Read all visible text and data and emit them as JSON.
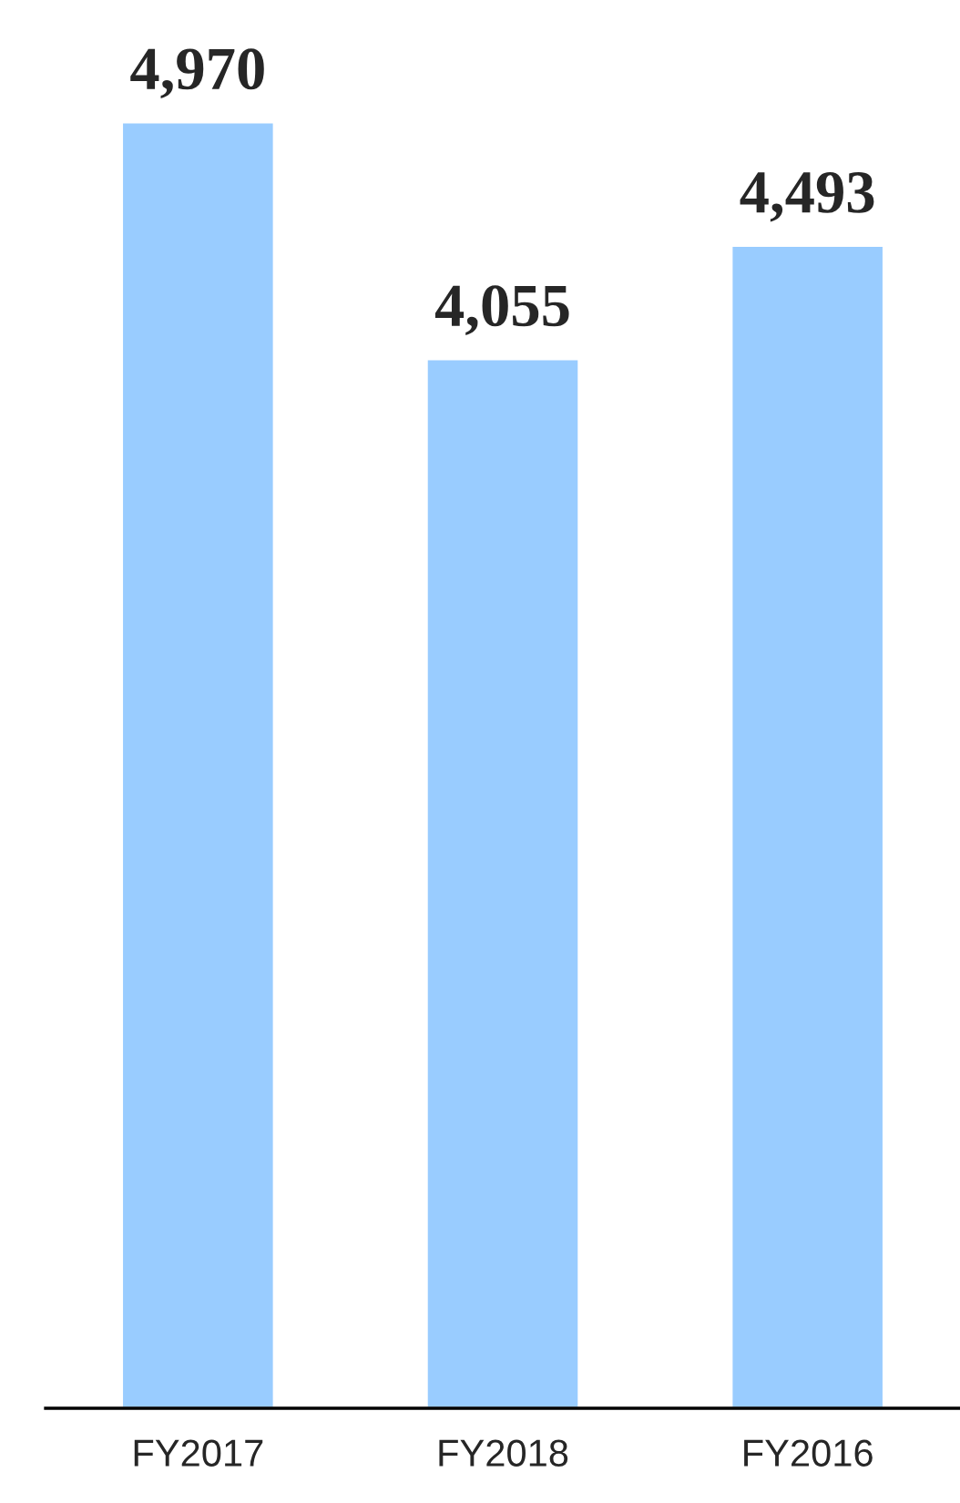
{
  "chart_data": {
    "type": "bar",
    "categories": [
      "FY2017",
      "FY2018",
      "FY2016"
    ],
    "values": [
      4970,
      4055,
      4493
    ],
    "color": "#99ccff",
    "value_labels": [
      "4,970",
      "4,055",
      "4,493"
    ],
    "grid": false,
    "legend": false
  }
}
